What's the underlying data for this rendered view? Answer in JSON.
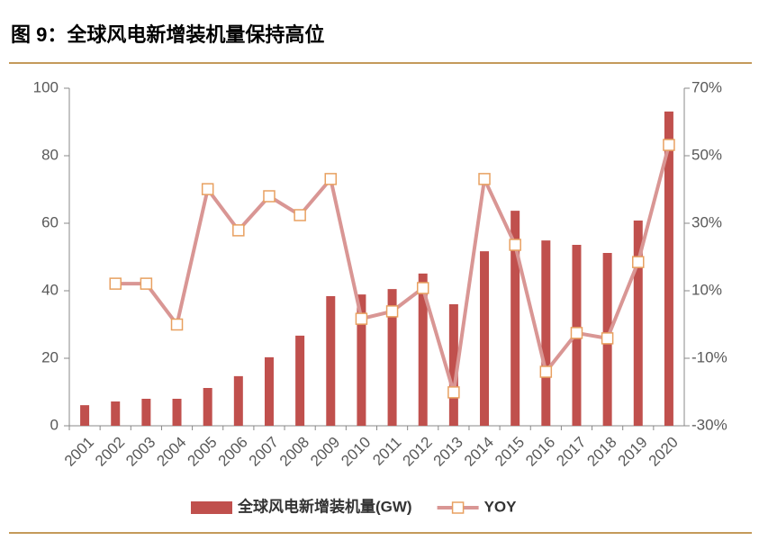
{
  "chart_data": {
    "type": "bar-line",
    "title": "图 9：全球风电新增装机量保持高位",
    "categories": [
      "2001",
      "2002",
      "2003",
      "2004",
      "2005",
      "2006",
      "2007",
      "2008",
      "2009",
      "2010",
      "2011",
      "2012",
      "2013",
      "2014",
      "2015",
      "2016",
      "2017",
      "2018",
      "2019",
      "2020"
    ],
    "series": [
      {
        "name": "全球风电新增装机量(GW)",
        "type": "bar",
        "color": "#c0504d",
        "values": [
          6.1,
          7.2,
          8.0,
          8.0,
          11.2,
          14.7,
          20.3,
          26.7,
          38.4,
          38.9,
          40.5,
          45.1,
          36.0,
          51.7,
          63.7,
          54.9,
          53.6,
          51.2,
          60.8,
          93.1
        ]
      },
      {
        "name": "YOY",
        "type": "line",
        "axis": "y2",
        "color": "#d99694",
        "marker_color": "#e8a060",
        "values": [
          null,
          12.1,
          12.1,
          0,
          40.1,
          27.9,
          38,
          32.4,
          43.1,
          1.7,
          3.9,
          10.8,
          -20.1,
          43.1,
          23.6,
          -14,
          -2.5,
          -4.1,
          18.5,
          53.2
        ]
      }
    ],
    "ylim": [
      0,
      100
    ],
    "yticks": [
      0,
      20,
      40,
      60,
      80,
      100
    ],
    "y2lim": [
      -30,
      70
    ],
    "y2ticks": [
      {
        "value": -30,
        "label": "-30%"
      },
      {
        "value": -10,
        "label": "-10%"
      },
      {
        "value": 10,
        "label": "10%"
      },
      {
        "value": 30,
        "label": "30%"
      },
      {
        "value": 50,
        "label": "50%"
      },
      {
        "value": 70,
        "label": "70%"
      }
    ]
  }
}
